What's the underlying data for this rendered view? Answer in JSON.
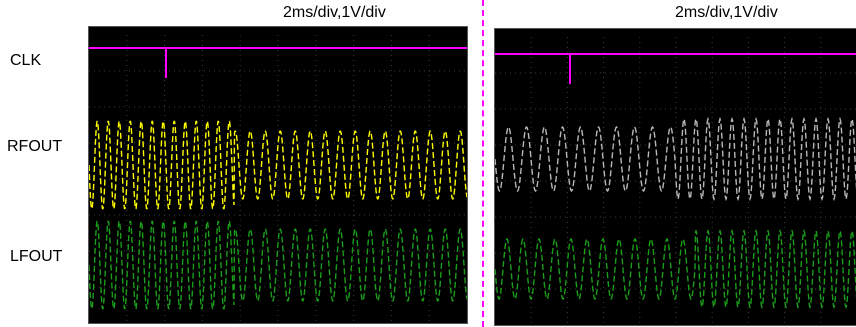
{
  "left_panel": {
    "timebase_label": "2ms/div,1V/div",
    "channel_labels": [
      "CLK",
      "RFOUT",
      "LFOUT"
    ],
    "channel_colors": {
      "clk": "#ff00ff",
      "rfout": "#ffff00",
      "lfout": "#1a9e1a"
    }
  },
  "right_panel": {
    "timebase_label": "2ms/div,1V/div",
    "channel_colors": {
      "clk": "#ff00ff",
      "rfout": "#b8b8b8",
      "lfout": "#1a9e1a"
    }
  },
  "colors": {
    "divider": "#ff00ff",
    "screen": "#000000",
    "grid": "#3a3a3a"
  }
}
